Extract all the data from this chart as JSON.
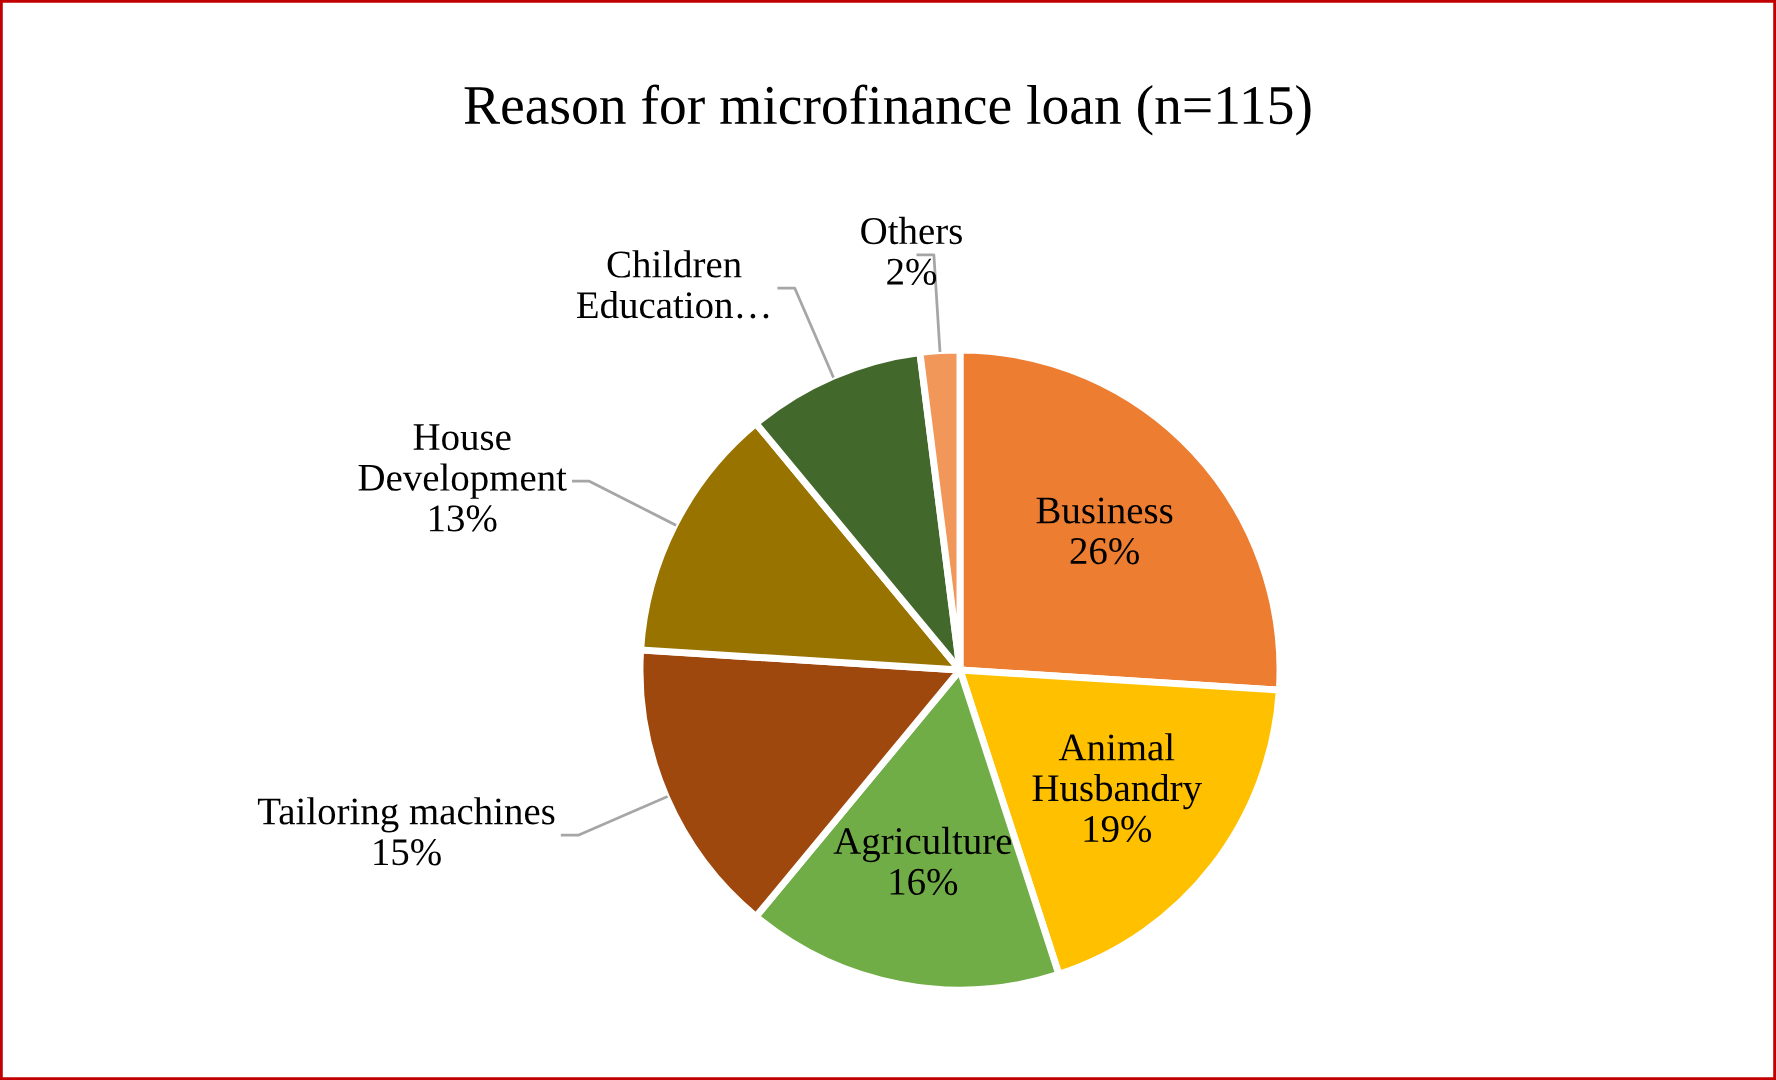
{
  "chart_data": {
    "type": "pie",
    "title": "Reason for microfinance loan (n=115)",
    "categories": [
      "Business",
      "Animal\nHusbandry",
      "Agriculture",
      "Tailoring machines",
      "House\nDevelopment",
      "Children\nEducation…",
      "Others"
    ],
    "values": [
      26,
      19,
      16,
      15,
      13,
      9,
      2
    ],
    "colors": [
      "#ed7d31",
      "#ffc000",
      "#70ad47",
      "#9e480e",
      "#997300",
      "#43682b",
      "#f1975a"
    ],
    "value_labels": [
      "26%",
      "19%",
      "16%",
      "15%",
      "13%",
      null,
      "2%"
    ],
    "legend": false
  }
}
